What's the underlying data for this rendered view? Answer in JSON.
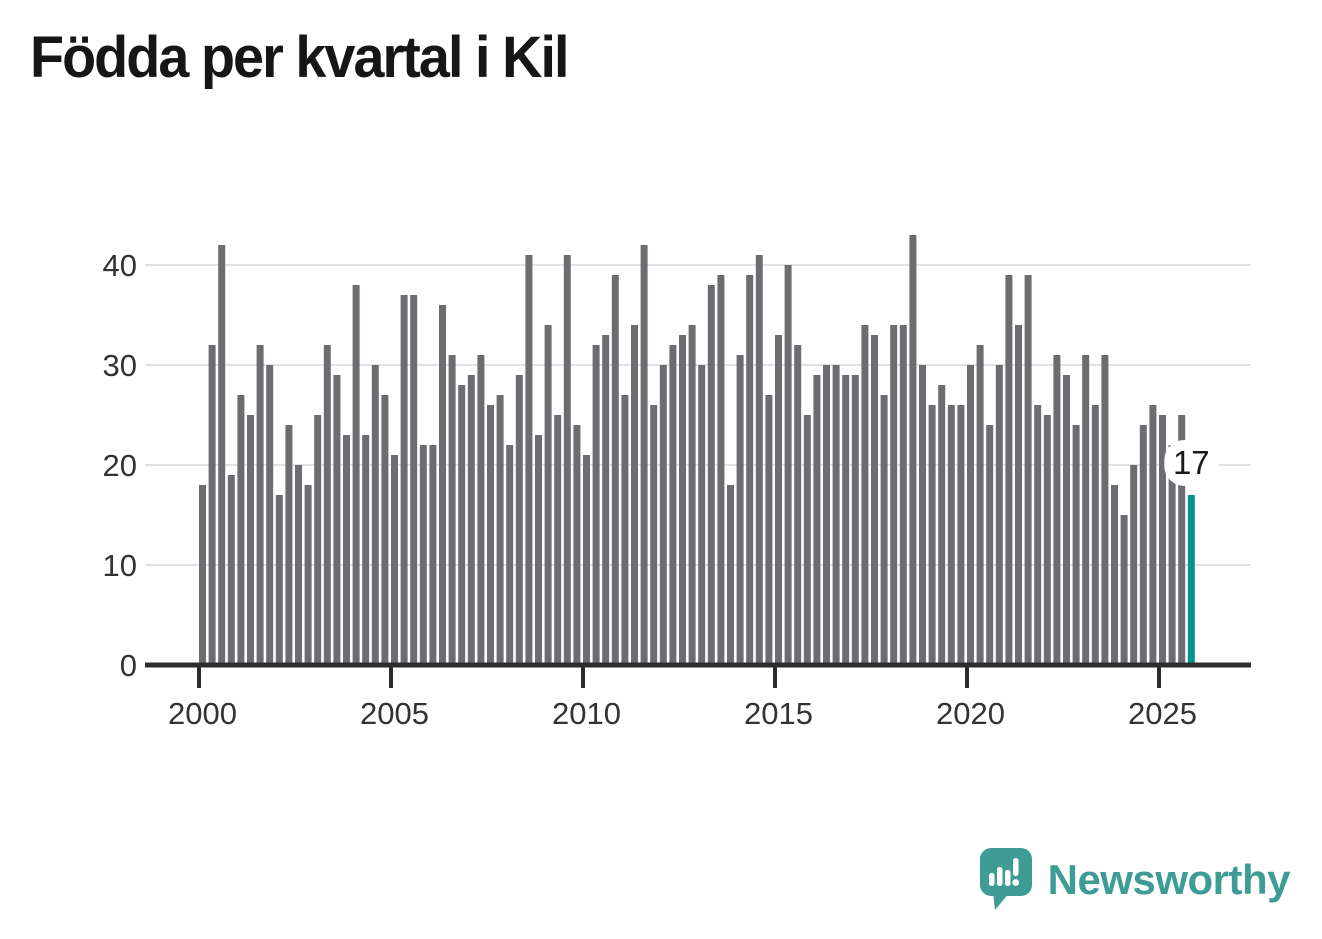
{
  "chart_data": {
    "type": "bar",
    "title": "Födda per kvartal i Kil",
    "x_start": "2000 Q1",
    "x_end": "2025 Q4",
    "frequency": "quarterly",
    "x_tick_labels": [
      "2000",
      "2005",
      "2010",
      "2015",
      "2020",
      "2025"
    ],
    "y_ticks": [
      0,
      10,
      20,
      30,
      40
    ],
    "ylim": [
      0,
      45
    ],
    "grid": true,
    "legend": false,
    "values": [
      18,
      32,
      42,
      19,
      27,
      25,
      32,
      30,
      17,
      24,
      20,
      18,
      25,
      32,
      29,
      23,
      38,
      23,
      30,
      27,
      21,
      37,
      37,
      22,
      22,
      36,
      31,
      28,
      29,
      31,
      26,
      27,
      22,
      29,
      41,
      23,
      34,
      25,
      41,
      24,
      21,
      32,
      33,
      39,
      27,
      34,
      42,
      26,
      30,
      32,
      33,
      34,
      30,
      38,
      39,
      18,
      31,
      39,
      41,
      27,
      33,
      40,
      32,
      25,
      29,
      30,
      30,
      29,
      29,
      34,
      33,
      27,
      34,
      34,
      43,
      30,
      26,
      28,
      26,
      26,
      30,
      32,
      24,
      30,
      39,
      34,
      39,
      26,
      25,
      31,
      29,
      24,
      31,
      26,
      31,
      18,
      15,
      20,
      24,
      26,
      25,
      22,
      25,
      17
    ],
    "highlight": {
      "index": 103,
      "label": "17"
    },
    "colors": {
      "bar": "#6d6d71",
      "highlight": "#00948f",
      "grid": "#e2e2e2",
      "axis": "#2d2d2d",
      "tick_text": "#333333",
      "label_text": "#1a1a1a",
      "label_bubble": "#ffffff"
    }
  },
  "footer": {
    "brand": "Newsworthy",
    "brand_color": "#3f9c95"
  }
}
